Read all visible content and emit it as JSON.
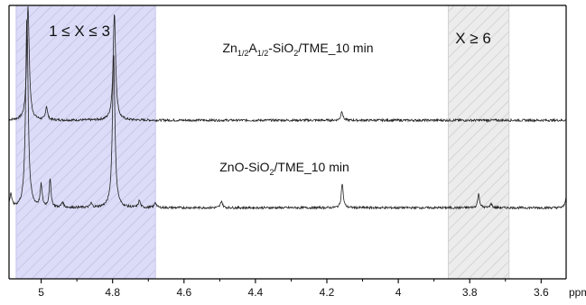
{
  "chart_data": {
    "type": "line",
    "title": "",
    "xlabel": "ppm",
    "ylabel": "",
    "x_reversed": true,
    "xlim": [
      5.09,
      3.53
    ],
    "ylim": [
      0,
      1
    ],
    "grid": false,
    "legend": "none",
    "xticks": [
      5.0,
      4.8,
      4.6,
      4.4,
      4.2,
      4.0,
      3.8,
      3.6
    ],
    "xtick_labels": [
      "5",
      "4.8",
      "4.6",
      "4.4",
      "4.2",
      "4",
      "3.8",
      "3.6"
    ],
    "shaded_regions": [
      {
        "label": "1 ≤ X ≤ 3",
        "x_from": 5.07,
        "x_to": 4.68,
        "color": "#dcdcf8",
        "hatch": "#b9b9dc"
      },
      {
        "label": "X ≥ 6",
        "x_from": 3.86,
        "x_to": 3.69,
        "color": "#ececec",
        "hatch": "#c6c6c6"
      }
    ],
    "series": [
      {
        "label_parts": [
          {
            "text": "Zn",
            "sub": false
          },
          {
            "text": "1/2",
            "sub": true
          },
          {
            "text": "A",
            "sub": false
          },
          {
            "text": "1/2",
            "sub": true
          },
          {
            "text": "-SiO",
            "sub": false
          },
          {
            "text": "2",
            "sub": true
          },
          {
            "text": "/TME_10 min",
            "sub": false
          }
        ],
        "baseline": 0.58,
        "peaks": [
          {
            "x": 5.037,
            "y": 1.0
          },
          {
            "x": 4.985,
            "y": 0.63
          },
          {
            "x": 4.795,
            "y": 0.97
          },
          {
            "x": 4.158,
            "y": 0.615
          }
        ]
      },
      {
        "label_parts": [
          {
            "text": "ZnO-SiO",
            "sub": false
          },
          {
            "text": "2",
            "sub": true
          },
          {
            "text": "/TME_10 min",
            "sub": false
          }
        ],
        "baseline": 0.26,
        "peaks": [
          {
            "x": 5.085,
            "y": 0.31
          },
          {
            "x": 5.04,
            "y": 0.96
          },
          {
            "x": 5.0,
            "y": 0.34
          },
          {
            "x": 4.975,
            "y": 0.36
          },
          {
            "x": 4.94,
            "y": 0.28
          },
          {
            "x": 4.86,
            "y": 0.275
          },
          {
            "x": 4.797,
            "y": 0.82
          },
          {
            "x": 4.725,
            "y": 0.285
          },
          {
            "x": 4.68,
            "y": 0.28
          },
          {
            "x": 4.495,
            "y": 0.285
          },
          {
            "x": 4.157,
            "y": 0.35
          },
          {
            "x": 3.775,
            "y": 0.31
          },
          {
            "x": 3.74,
            "y": 0.275
          },
          {
            "x": 3.53,
            "y": 0.3
          }
        ]
      }
    ]
  }
}
